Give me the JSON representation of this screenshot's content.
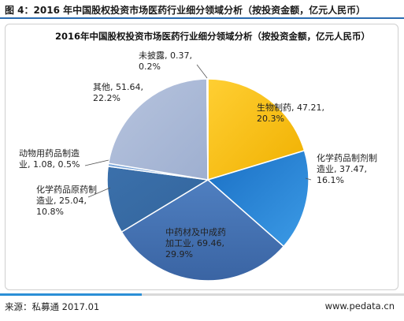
{
  "figure_title": "图 4：2016 年中国股权投资市场医药行业细分领域分析（按投资金额，亿元人民币）",
  "footer": {
    "source": "来源：私募通 2017.01",
    "website": "www.pedata.cn"
  },
  "chart_data": {
    "type": "pie",
    "title": "2016年中国股权投资市场医药行业细分领域分析（按投资金额，亿元人民币）",
    "unit": "亿元人民币",
    "slices": [
      {
        "name": "生物制药",
        "value": 47.21,
        "percent": "20.3%",
        "color": "#ffc000",
        "label_lines": [
          "生物制药, 47.21,",
          "20.3%"
        ]
      },
      {
        "name": "化学药品制剂制造业",
        "value": 37.47,
        "percent": "16.1%",
        "color": "#1f7fd0",
        "label_lines": [
          "化学药品制剂制",
          "造业, 37.47,",
          "16.1%"
        ]
      },
      {
        "name": "中药材及中成药加工业",
        "value": 69.46,
        "percent": "29.9%",
        "color": "#4472b4",
        "label_lines": [
          "中药材及中成药",
          "加工业, 69.46,",
          "29.9%"
        ]
      },
      {
        "name": "化学药品原药制造业",
        "value": 25.04,
        "percent": "10.8%",
        "color": "#3a6fa8",
        "label_lines": [
          "化学药品原药制",
          "造业, 25.04,",
          "10.8%"
        ]
      },
      {
        "name": "动物用药品制造业",
        "value": 1.08,
        "percent": "0.5%",
        "color": "#6f9fd8",
        "label_lines": [
          "动物用药品制造",
          "业, 1.08, 0.5%"
        ]
      },
      {
        "name": "其他",
        "value": 51.64,
        "percent": "22.2%",
        "color": "#a9b8d6",
        "label_lines": [
          "其他, 51.64,",
          "22.2%"
        ]
      },
      {
        "name": "未披露",
        "value": 0.37,
        "percent": "0.2%",
        "color": "#d9d9d9",
        "label_lines": [
          "未披露, 0.37,",
          "0.2%"
        ]
      }
    ]
  }
}
